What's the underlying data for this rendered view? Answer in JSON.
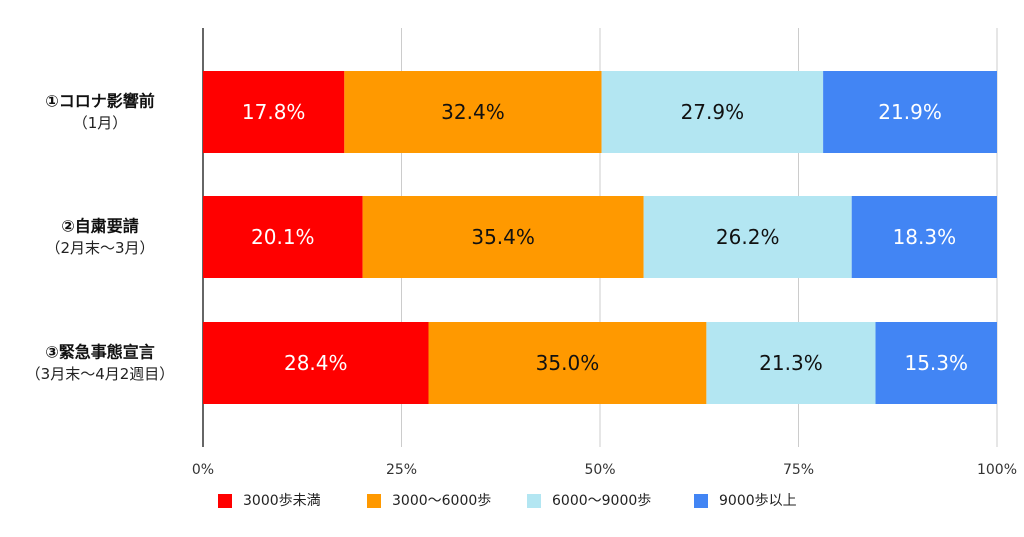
{
  "chart_data": {
    "type": "bar",
    "orientation": "horizontal",
    "stacked": "percent",
    "categories": [
      {
        "title": "①コロナ影響前",
        "subtitle": "（1月）"
      },
      {
        "title": "②自粛要請",
        "subtitle": "（2月末～3月）"
      },
      {
        "title": "③緊急事態宣言",
        "subtitle": "（3月末～4月2週目）"
      }
    ],
    "series": [
      {
        "name": "3000歩未満",
        "color": "#ff0000",
        "text_color": "#ffffff",
        "values": [
          17.8,
          20.1,
          28.4
        ],
        "labels": [
          "17.8%",
          "20.1%",
          "28.4%"
        ]
      },
      {
        "name": "3000～6000歩",
        "color": "#ff9900",
        "text_color": "#111111",
        "values": [
          32.4,
          35.4,
          35.0
        ],
        "labels": [
          "32.4%",
          "35.4%",
          "35.0%"
        ]
      },
      {
        "name": "6000～9000歩",
        "color": "#b3e6f2",
        "text_color": "#111111",
        "values": [
          27.9,
          26.2,
          21.3
        ],
        "labels": [
          "27.9%",
          "26.2%",
          "21.3%"
        ]
      },
      {
        "name": "9000歩以上",
        "color": "#4285f4",
        "text_color": "#ffffff",
        "values": [
          21.9,
          18.3,
          15.3
        ],
        "labels": [
          "21.9%",
          "18.3%",
          "15.3%"
        ]
      }
    ],
    "xlim": [
      0,
      100
    ],
    "x_ticks": [
      0,
      25,
      50,
      75,
      100
    ],
    "x_tick_labels": [
      "0%",
      "25%",
      "50%",
      "75%",
      "100%"
    ],
    "grid": true,
    "legend_position": "bottom"
  }
}
